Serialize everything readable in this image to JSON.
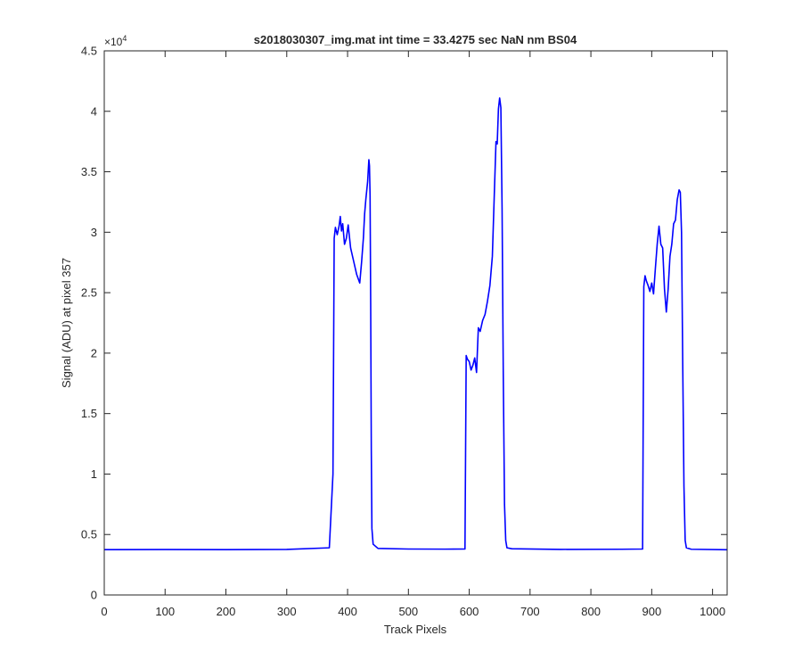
{
  "chart_data": {
    "type": "line",
    "title": "s2018030307_img.mat int time = 33.4275 sec  NaN nm BS04",
    "xlabel": "Track Pixels",
    "ylabel": "Signal (ADU) at pixel 357",
    "xlim": [
      0,
      1024
    ],
    "ylim": [
      0,
      45000
    ],
    "x_ticks": [
      0,
      100,
      200,
      300,
      400,
      500,
      600,
      700,
      800,
      900,
      1000
    ],
    "y_ticks": [
      0,
      5000,
      10000,
      15000,
      20000,
      25000,
      30000,
      35000,
      40000,
      45000
    ],
    "y_tick_labels": [
      "0",
      "0.5",
      "1",
      "1.5",
      "2",
      "2.5",
      "3",
      "3.5",
      "4",
      "4.5"
    ],
    "y_exponent": "×10",
    "y_exponent_power": "4",
    "grid": false,
    "line_color": "#0000ff",
    "series": [
      {
        "x": [
          0,
          100,
          200,
          300,
          370,
          376,
          378,
          380,
          383,
          386,
          388,
          390,
          392,
          395,
          398,
          401,
          405,
          410,
          415,
          420,
          423,
          426,
          428,
          430,
          433,
          435,
          436,
          437,
          438,
          439,
          440,
          442,
          450,
          500,
          560,
          593,
          595,
          597,
          600,
          603,
          606,
          609,
          612,
          615,
          618,
          622,
          626,
          630,
          634,
          638,
          641,
          644,
          646,
          648,
          650,
          652,
          654,
          656,
          658,
          660,
          662,
          670,
          750,
          850,
          885,
          887,
          889,
          891,
          894,
          897,
          900,
          903,
          906,
          909,
          912,
          915,
          918,
          921,
          924,
          927,
          930,
          933,
          936,
          939,
          942,
          945,
          947,
          949,
          951,
          953,
          955,
          957,
          965,
          1024
        ],
        "y": [
          3750,
          3760,
          3750,
          3770,
          3900,
          10000,
          29500,
          30400,
          29800,
          30500,
          31300,
          30100,
          30700,
          29000,
          29500,
          30600,
          28700,
          27600,
          26500,
          25800,
          27500,
          29500,
          31500,
          32700,
          34200,
          36000,
          35500,
          33000,
          24000,
          12000,
          5500,
          4200,
          3850,
          3800,
          3790,
          3800,
          19800,
          19500,
          19300,
          18600,
          19000,
          19600,
          18400,
          22100,
          21800,
          22700,
          23200,
          24300,
          25600,
          28000,
          32800,
          37500,
          37300,
          40200,
          41100,
          40300,
          32000,
          18000,
          7500,
          4500,
          3900,
          3820,
          3770,
          3780,
          3800,
          25500,
          26400,
          26000,
          25600,
          25100,
          25800,
          24900,
          27000,
          29000,
          30500,
          29000,
          28700,
          25300,
          23400,
          25300,
          28000,
          29000,
          30700,
          31000,
          32700,
          33500,
          33300,
          30000,
          19000,
          9000,
          4500,
          3900,
          3780,
          3740
        ]
      }
    ]
  }
}
